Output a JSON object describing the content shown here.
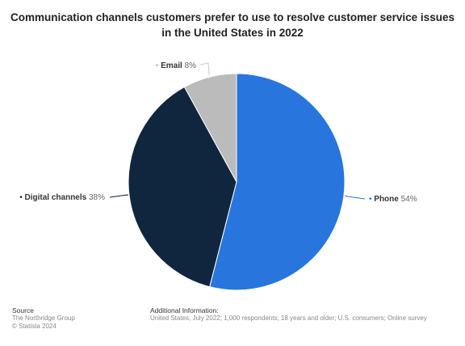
{
  "chart_data": {
    "type": "pie",
    "title_lines": [
      "Communication channels customers prefer to use to resolve customer service issues",
      "in the United States in 2022"
    ],
    "slices": [
      {
        "label": "Phone",
        "value": 54,
        "display": "54%",
        "color": "#2876dd"
      },
      {
        "label": "Digital channels",
        "value": 38,
        "display": "38%",
        "color": "#10263f"
      },
      {
        "label": "Email",
        "value": 8,
        "display": "8%",
        "color": "#bbbbbb"
      }
    ],
    "start": "12 o'clock",
    "direction": "clockwise"
  },
  "footer": {
    "source_heading": "Source",
    "source_lines": [
      "The Northridge Group",
      "© Statista 2024"
    ],
    "info_heading": "Additional Information:",
    "info_text": "United States; July 2022; 1,000 respondents; 18 years and older; U.S. consumers; Online survey"
  }
}
